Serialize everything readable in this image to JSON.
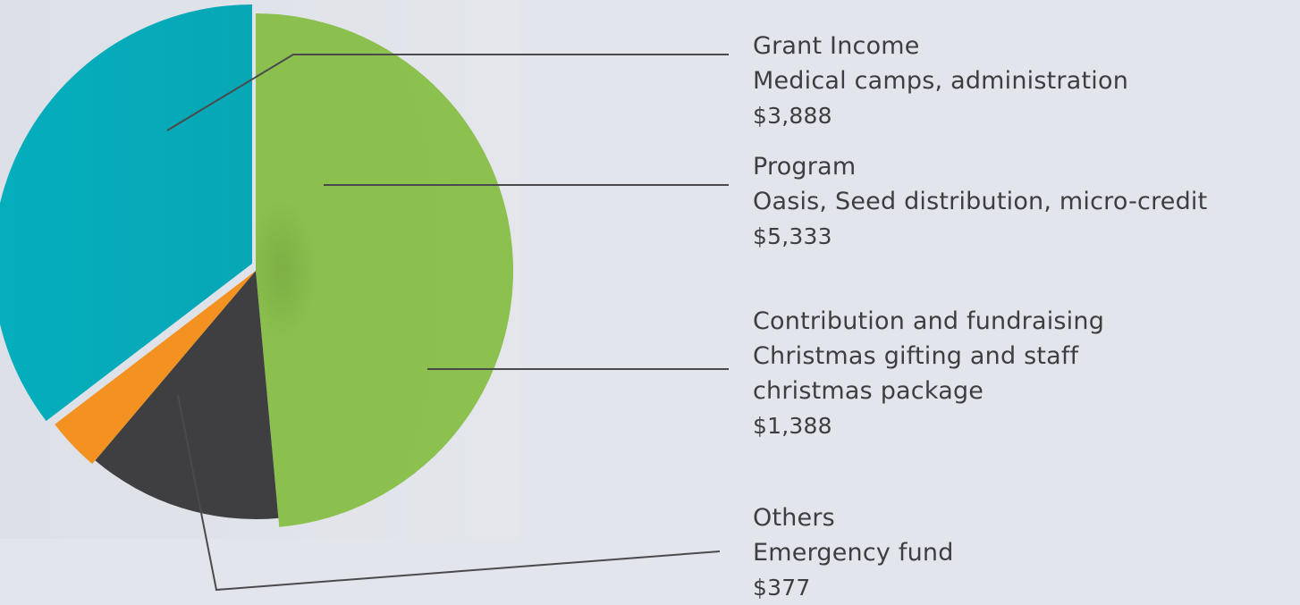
{
  "chart_data": {
    "type": "pie",
    "legend": "right",
    "slices": [
      {
        "name": "Program",
        "description": "Oasis, Seed distribution, micro-credit",
        "value_label": "$5,333",
        "value": 5333,
        "color": "#8bbd4f"
      },
      {
        "name": "Contribution and fundraising",
        "description_lines": [
          "Christmas gifting and staff",
          "christmas package"
        ],
        "value_label": "$1,388",
        "value": 1388,
        "color": "#3f3f41"
      },
      {
        "name": "Others",
        "description": "Emergency fund",
        "value_label": "$377",
        "value": 377,
        "color": "#f39220"
      },
      {
        "name": "Grant Income",
        "description": "Medical camps, administration",
        "value_label": "$3,888",
        "value": 3888,
        "color": "#04abbb"
      }
    ]
  }
}
